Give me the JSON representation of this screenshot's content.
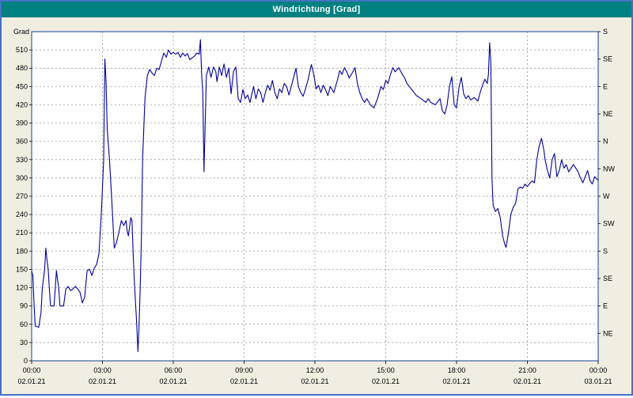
{
  "window": {
    "title": "Windrichtung [Grad]"
  },
  "colors": {
    "window_border": "#4472c4",
    "title_bar_bg": "#008080",
    "title_text": "#ffffff",
    "chart_bg": "#f0eee1",
    "plot_bg": "#ffffff",
    "plot_border": "#3a5fa8",
    "grid": "#8a8a8a",
    "line": "#0000a0",
    "text": "#000000"
  },
  "chart_data": {
    "type": "line",
    "title": "Windrichtung [Grad]",
    "ylabel": "Grad",
    "xlabel": "",
    "ylim": [
      0,
      540
    ],
    "xlim_hours": [
      0,
      24
    ],
    "grid": "dashed",
    "legend_position": "none",
    "y_ticks_left": [
      0,
      30,
      60,
      90,
      120,
      150,
      180,
      210,
      240,
      270,
      300,
      330,
      360,
      390,
      420,
      450,
      480,
      510
    ],
    "y_axis_right": [
      {
        "value": 540,
        "label": "S"
      },
      {
        "value": 495,
        "label": "SE"
      },
      {
        "value": 450,
        "label": "E"
      },
      {
        "value": 405,
        "label": "NE"
      },
      {
        "value": 360,
        "label": "N"
      },
      {
        "value": 315,
        "label": "NW"
      },
      {
        "value": 270,
        "label": "W"
      },
      {
        "value": 225,
        "label": "SW"
      },
      {
        "value": 180,
        "label": "S"
      },
      {
        "value": 135,
        "label": "SE"
      },
      {
        "value": 90,
        "label": "E"
      },
      {
        "value": 45,
        "label": "NE"
      }
    ],
    "x_ticks": [
      {
        "t": 0,
        "time": "00:00",
        "date": "02.01.21"
      },
      {
        "t": 3,
        "time": "03:00",
        "date": "02.01.21"
      },
      {
        "t": 6,
        "time": "06:00",
        "date": "02.01.21"
      },
      {
        "t": 9,
        "time": "09:00",
        "date": "02.01.21"
      },
      {
        "t": 12,
        "time": "12:00",
        "date": "02.01.21"
      },
      {
        "t": 15,
        "time": "15:00",
        "date": "02.01.21"
      },
      {
        "t": 18,
        "time": "18:00",
        "date": "02.01.21"
      },
      {
        "t": 21,
        "time": "21:00",
        "date": "02.01.21"
      },
      {
        "t": 24,
        "time": "00:00",
        "date": "03.01.21"
      }
    ],
    "series": [
      {
        "name": "Windrichtung",
        "color": "#0000a0",
        "points": [
          [
            0,
            148
          ],
          [
            0.05,
            140
          ],
          [
            0.1,
            95
          ],
          [
            0.15,
            57
          ],
          [
            0.3,
            55
          ],
          [
            0.4,
            80
          ],
          [
            0.45,
            118
          ],
          [
            0.55,
            150
          ],
          [
            0.6,
            185
          ],
          [
            0.65,
            165
          ],
          [
            0.7,
            150
          ],
          [
            0.75,
            118
          ],
          [
            0.8,
            90
          ],
          [
            0.95,
            90
          ],
          [
            1.0,
            118
          ],
          [
            1.05,
            148
          ],
          [
            1.15,
            118
          ],
          [
            1.2,
            90
          ],
          [
            1.35,
            90
          ],
          [
            1.45,
            118
          ],
          [
            1.55,
            122
          ],
          [
            1.65,
            115
          ],
          [
            1.75,
            118
          ],
          [
            1.85,
            122
          ],
          [
            1.95,
            118
          ],
          [
            2.05,
            112
          ],
          [
            2.15,
            95
          ],
          [
            2.25,
            105
          ],
          [
            2.35,
            148
          ],
          [
            2.45,
            150
          ],
          [
            2.55,
            140
          ],
          [
            2.65,
            152
          ],
          [
            2.75,
            158
          ],
          [
            2.85,
            175
          ],
          [
            2.95,
            240
          ],
          [
            3.05,
            330
          ],
          [
            3.1,
            495
          ],
          [
            3.15,
            460
          ],
          [
            3.2,
            380
          ],
          [
            3.3,
            330
          ],
          [
            3.4,
            260
          ],
          [
            3.5,
            185
          ],
          [
            3.6,
            195
          ],
          [
            3.7,
            212
          ],
          [
            3.8,
            230
          ],
          [
            3.9,
            222
          ],
          [
            4.0,
            230
          ],
          [
            4.05,
            212
          ],
          [
            4.1,
            205
          ],
          [
            4.2,
            235
          ],
          [
            4.25,
            230
          ],
          [
            4.3,
            175
          ],
          [
            4.35,
            130
          ],
          [
            4.45,
            60
          ],
          [
            4.5,
            15
          ],
          [
            4.55,
            55
          ],
          [
            4.6,
            120
          ],
          [
            4.65,
            200
          ],
          [
            4.7,
            330
          ],
          [
            4.8,
            430
          ],
          [
            4.9,
            468
          ],
          [
            5.0,
            478
          ],
          [
            5.1,
            472
          ],
          [
            5.2,
            468
          ],
          [
            5.3,
            480
          ],
          [
            5.4,
            478
          ],
          [
            5.5,
            492
          ],
          [
            5.6,
            505
          ],
          [
            5.7,
            498
          ],
          [
            5.8,
            510
          ],
          [
            5.9,
            503
          ],
          [
            6.0,
            506
          ],
          [
            6.1,
            503
          ],
          [
            6.2,
            506
          ],
          [
            6.3,
            498
          ],
          [
            6.4,
            505
          ],
          [
            6.5,
            500
          ],
          [
            6.6,
            504
          ],
          [
            6.7,
            494
          ],
          [
            6.8,
            497
          ],
          [
            6.9,
            500
          ],
          [
            7.0,
            505
          ],
          [
            7.1,
            503
          ],
          [
            7.15,
            527
          ],
          [
            7.2,
            470
          ],
          [
            7.25,
            440
          ],
          [
            7.3,
            310
          ],
          [
            7.4,
            468
          ],
          [
            7.5,
            482
          ],
          [
            7.6,
            465
          ],
          [
            7.7,
            482
          ],
          [
            7.8,
            475
          ],
          [
            7.85,
            458
          ],
          [
            7.95,
            482
          ],
          [
            8.05,
            468
          ],
          [
            8.15,
            487
          ],
          [
            8.25,
            465
          ],
          [
            8.35,
            480
          ],
          [
            8.45,
            438
          ],
          [
            8.55,
            475
          ],
          [
            8.65,
            482
          ],
          [
            8.75,
            430
          ],
          [
            8.85,
            424
          ],
          [
            8.95,
            445
          ],
          [
            9.05,
            430
          ],
          [
            9.15,
            436
          ],
          [
            9.25,
            424
          ],
          [
            9.4,
            450
          ],
          [
            9.5,
            430
          ],
          [
            9.6,
            446
          ],
          [
            9.7,
            440
          ],
          [
            9.8,
            424
          ],
          [
            9.9,
            440
          ],
          [
            10.0,
            452
          ],
          [
            10.1,
            444
          ],
          [
            10.2,
            460
          ],
          [
            10.3,
            440
          ],
          [
            10.4,
            430
          ],
          [
            10.5,
            446
          ],
          [
            10.6,
            440
          ],
          [
            10.7,
            455
          ],
          [
            10.8,
            450
          ],
          [
            10.9,
            436
          ],
          [
            11.1,
            465
          ],
          [
            11.2,
            480
          ],
          [
            11.3,
            450
          ],
          [
            11.4,
            440
          ],
          [
            11.5,
            434
          ],
          [
            11.6,
            446
          ],
          [
            11.7,
            460
          ],
          [
            11.85,
            486
          ],
          [
            11.95,
            470
          ],
          [
            12.05,
            446
          ],
          [
            12.15,
            452
          ],
          [
            12.25,
            440
          ],
          [
            12.35,
            452
          ],
          [
            12.45,
            445
          ],
          [
            12.55,
            435
          ],
          [
            12.65,
            450
          ],
          [
            12.8,
            440
          ],
          [
            12.95,
            460
          ],
          [
            13.05,
            476
          ],
          [
            13.15,
            470
          ],
          [
            13.25,
            481
          ],
          [
            13.35,
            474
          ],
          [
            13.45,
            464
          ],
          [
            13.55,
            470
          ],
          [
            13.7,
            481
          ],
          [
            13.8,
            455
          ],
          [
            13.9,
            440
          ],
          [
            14.0,
            430
          ],
          [
            14.1,
            424
          ],
          [
            14.2,
            430
          ],
          [
            14.35,
            420
          ],
          [
            14.5,
            415
          ],
          [
            14.65,
            430
          ],
          [
            14.8,
            450
          ],
          [
            14.9,
            445
          ],
          [
            15.0,
            460
          ],
          [
            15.1,
            455
          ],
          [
            15.2,
            470
          ],
          [
            15.3,
            481
          ],
          [
            15.4,
            474
          ],
          [
            15.55,
            481
          ],
          [
            15.7,
            470
          ],
          [
            15.8,
            464
          ],
          [
            15.9,
            455
          ],
          [
            16.0,
            450
          ],
          [
            16.1,
            445
          ],
          [
            16.3,
            435
          ],
          [
            16.5,
            430
          ],
          [
            16.7,
            424
          ],
          [
            16.8,
            430
          ],
          [
            16.9,
            424
          ],
          [
            17.1,
            420
          ],
          [
            17.3,
            430
          ],
          [
            17.4,
            410
          ],
          [
            17.5,
            405
          ],
          [
            17.6,
            420
          ],
          [
            17.7,
            450
          ],
          [
            17.8,
            466
          ],
          [
            17.9,
            420
          ],
          [
            18.0,
            415
          ],
          [
            18.1,
            448
          ],
          [
            18.2,
            465
          ],
          [
            18.3,
            438
          ],
          [
            18.4,
            430
          ],
          [
            18.5,
            435
          ],
          [
            18.6,
            428
          ],
          [
            18.75,
            432
          ],
          [
            18.9,
            426
          ],
          [
            19.0,
            440
          ],
          [
            19.1,
            452
          ],
          [
            19.2,
            462
          ],
          [
            19.3,
            455
          ],
          [
            19.35,
            470
          ],
          [
            19.4,
            522
          ],
          [
            19.45,
            490
          ],
          [
            19.5,
            300
          ],
          [
            19.55,
            255
          ],
          [
            19.65,
            245
          ],
          [
            19.75,
            250
          ],
          [
            19.85,
            235
          ],
          [
            19.95,
            205
          ],
          [
            20.05,
            190
          ],
          [
            20.1,
            186
          ],
          [
            20.2,
            210
          ],
          [
            20.3,
            240
          ],
          [
            20.4,
            252
          ],
          [
            20.5,
            258
          ],
          [
            20.6,
            282
          ],
          [
            20.7,
            285
          ],
          [
            20.8,
            283
          ],
          [
            20.9,
            290
          ],
          [
            21.0,
            286
          ],
          [
            21.1,
            291
          ],
          [
            21.2,
            295
          ],
          [
            21.3,
            292
          ],
          [
            21.4,
            330
          ],
          [
            21.5,
            352
          ],
          [
            21.6,
            365
          ],
          [
            21.7,
            345
          ],
          [
            21.75,
            330
          ],
          [
            21.85,
            312
          ],
          [
            21.95,
            300
          ],
          [
            22.05,
            330
          ],
          [
            22.15,
            340
          ],
          [
            22.25,
            302
          ],
          [
            22.35,
            312
          ],
          [
            22.45,
            330
          ],
          [
            22.55,
            316
          ],
          [
            22.65,
            322
          ],
          [
            22.75,
            310
          ],
          [
            22.85,
            316
          ],
          [
            22.95,
            322
          ],
          [
            23.05,
            316
          ],
          [
            23.15,
            310
          ],
          [
            23.25,
            300
          ],
          [
            23.35,
            292
          ],
          [
            23.45,
            302
          ],
          [
            23.55,
            312
          ],
          [
            23.65,
            296
          ],
          [
            23.75,
            290
          ],
          [
            23.85,
            302
          ],
          [
            24,
            296
          ]
        ]
      }
    ]
  }
}
